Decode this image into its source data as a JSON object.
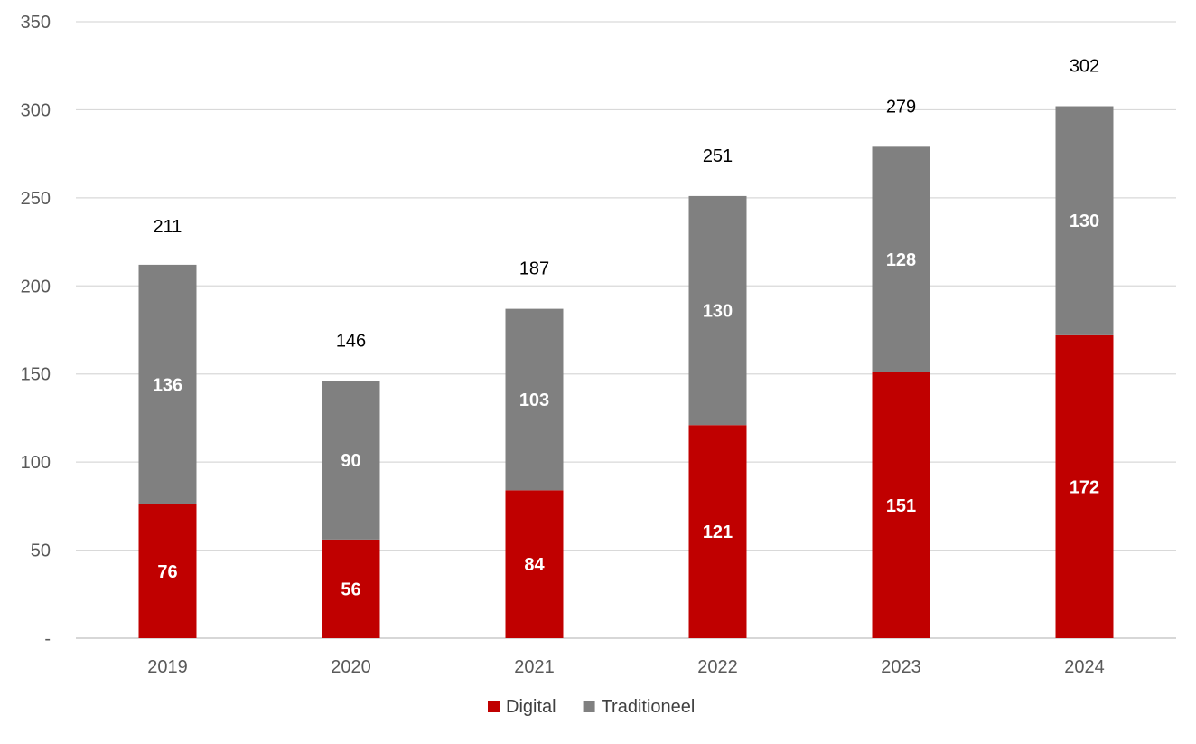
{
  "chart_data": {
    "type": "bar",
    "stacked": true,
    "categories": [
      "2019",
      "2020",
      "2021",
      "2022",
      "2023",
      "2024"
    ],
    "series": [
      {
        "name": "Digital",
        "values": [
          76,
          56,
          84,
          121,
          151,
          172
        ],
        "color": "#c00000"
      },
      {
        "name": "Traditioneel",
        "values": [
          136,
          90,
          103,
          130,
          128,
          130
        ],
        "color": "#808080"
      }
    ],
    "totals": [
      211,
      146,
      187,
      251,
      279,
      302
    ],
    "ylim": [
      0,
      350
    ],
    "yticks": [
      0,
      50,
      100,
      150,
      200,
      250,
      300,
      350
    ],
    "ytick_labels": [
      "-",
      "50",
      "100",
      "150",
      "200",
      "250",
      "300",
      "350"
    ],
    "grid": true,
    "legend_position": "bottom",
    "title": "",
    "xlabel": "",
    "ylabel": ""
  }
}
